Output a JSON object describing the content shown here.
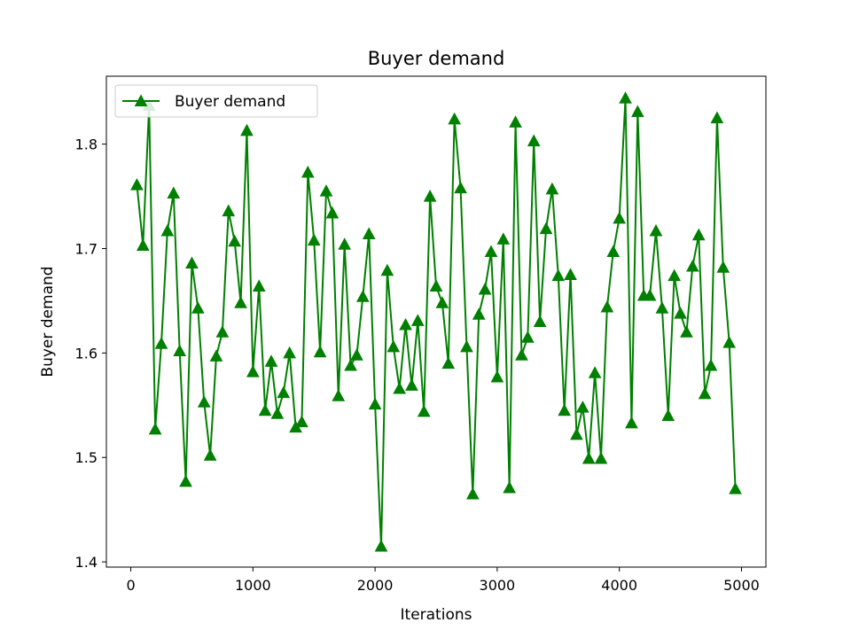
{
  "chart_data": {
    "type": "line",
    "title": "Buyer demand",
    "xlabel": "Iterations",
    "ylabel": "Buyer demand",
    "xlim": [
      -200,
      5200
    ],
    "ylim": [
      1.395,
      1.865
    ],
    "xticks": [
      0,
      1000,
      2000,
      3000,
      4000,
      5000
    ],
    "yticks": [
      1.4,
      1.5,
      1.6,
      1.7,
      1.8
    ],
    "grid": false,
    "legend_position": "top-left",
    "series": [
      {
        "name": "Buyer demand",
        "color": "#008000",
        "marker": "triangle-up",
        "x": [
          50,
          100,
          150,
          200,
          250,
          300,
          350,
          400,
          450,
          500,
          550,
          600,
          650,
          700,
          750,
          800,
          850,
          900,
          950,
          1000,
          1050,
          1100,
          1150,
          1200,
          1250,
          1300,
          1350,
          1400,
          1450,
          1500,
          1550,
          1600,
          1650,
          1700,
          1750,
          1800,
          1850,
          1900,
          1950,
          2000,
          2050,
          2100,
          2150,
          2200,
          2250,
          2300,
          2350,
          2400,
          2450,
          2500,
          2550,
          2600,
          2650,
          2700,
          2750,
          2800,
          2850,
          2900,
          2950,
          3000,
          3050,
          3100,
          3150,
          3200,
          3250,
          3300,
          3350,
          3400,
          3450,
          3500,
          3550,
          3600,
          3650,
          3700,
          3750,
          3800,
          3850,
          3900,
          3950,
          4000,
          4050,
          4100,
          4150,
          4200,
          4250,
          4300,
          4350,
          4400,
          4450,
          4500,
          4550,
          4600,
          4650,
          4700,
          4750,
          4800,
          4850,
          4900,
          4950
        ],
        "values": [
          1.761,
          1.703,
          1.837,
          1.527,
          1.609,
          1.717,
          1.753,
          1.602,
          1.477,
          1.686,
          1.643,
          1.553,
          1.502,
          1.597,
          1.62,
          1.736,
          1.707,
          1.648,
          1.813,
          1.582,
          1.664,
          1.545,
          1.592,
          1.542,
          1.562,
          1.6,
          1.529,
          1.534,
          1.773,
          1.708,
          1.601,
          1.755,
          1.734,
          1.559,
          1.704,
          1.588,
          1.598,
          1.654,
          1.714,
          1.551,
          1.415,
          1.679,
          1.606,
          1.566,
          1.627,
          1.569,
          1.631,
          1.544,
          1.75,
          1.664,
          1.648,
          1.59,
          1.824,
          1.758,
          1.606,
          1.465,
          1.637,
          1.661,
          1.697,
          1.577,
          1.709,
          1.471,
          1.821,
          1.598,
          1.615,
          1.803,
          1.63,
          1.719,
          1.757,
          1.674,
          1.545,
          1.675,
          1.522,
          1.548,
          1.499,
          1.581,
          1.499,
          1.644,
          1.697,
          1.729,
          1.844,
          1.533,
          1.831,
          1.655,
          1.655,
          1.717,
          1.643,
          1.54,
          1.674,
          1.638,
          1.62,
          1.683,
          1.713,
          1.561,
          1.588,
          1.825,
          1.682,
          1.61,
          1.47
        ]
      }
    ]
  }
}
